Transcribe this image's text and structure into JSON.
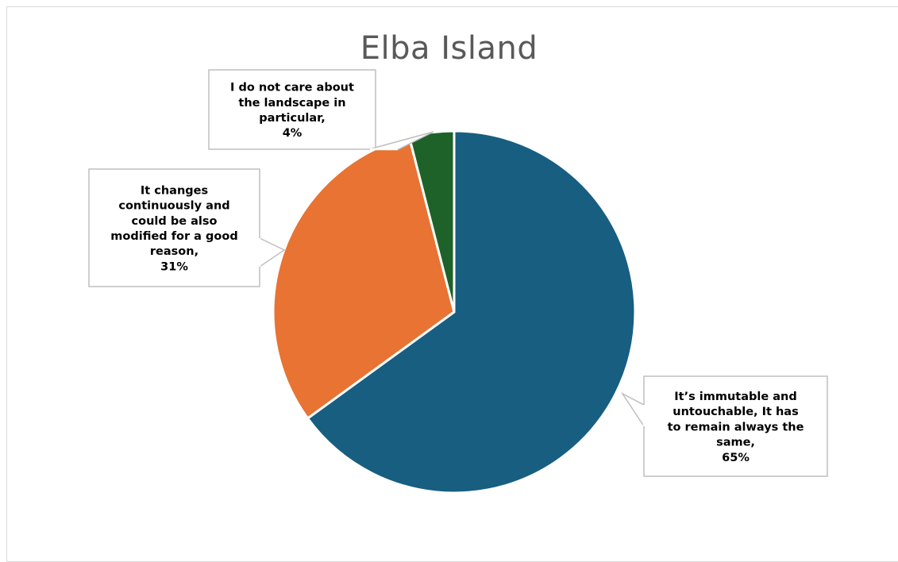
{
  "chart_data": {
    "type": "pie",
    "title": "Elba Island",
    "slices": [
      {
        "key": "immutable",
        "label_lines": [
          "It’s immutable and",
          "untouchable, It has",
          "to remain always the",
          "same,"
        ],
        "value": 65,
        "value_label": "65%",
        "color": "#175e81"
      },
      {
        "key": "changes",
        "label_lines": [
          "It changes",
          "continuously and",
          "could be also",
          "modified for a good",
          "reason,"
        ],
        "value": 31,
        "value_label": "31%",
        "color": "#e87333"
      },
      {
        "key": "dont-care",
        "label_lines": [
          "I do not care about",
          "the landscape in",
          "particular,"
        ],
        "value": 4,
        "value_label": "4%",
        "color": "#1e6229"
      }
    ],
    "start_angle_deg": 0,
    "direction": "clockwise",
    "legend": "none",
    "data_labels": "callouts"
  }
}
